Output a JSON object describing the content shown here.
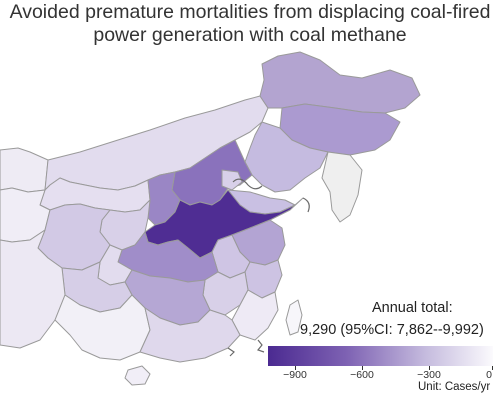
{
  "title": {
    "line1": "Avoided premature mortalities from displacing coal-fired",
    "line2": "power generation with coal methane"
  },
  "annotation": {
    "label": "Annual total:",
    "value": "9,290 (95%CI: 7,862--9,992)"
  },
  "legend": {
    "ticks": [
      {
        "label": "−900",
        "value": -900
      },
      {
        "label": "−600",
        "value": -600
      },
      {
        "label": "−300",
        "value": -300
      },
      {
        "label": "0",
        "value": 0
      }
    ],
    "unit": "Unit: Cases/yr",
    "color_dark": "#4b2a91",
    "color_light": "#fbfafd"
  },
  "colors": {
    "border": "#9a9a9a",
    "background": "#ffffff",
    "coast": "#6a6a6a"
  }
}
